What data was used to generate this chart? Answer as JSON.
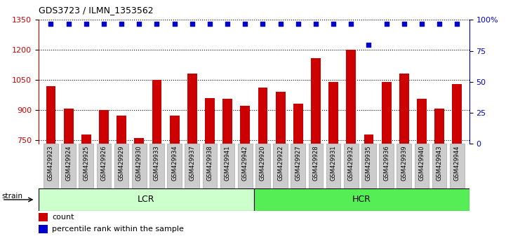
{
  "title": "GDS3723 / ILMN_1353562",
  "categories": [
    "GSM429923",
    "GSM429924",
    "GSM429925",
    "GSM429926",
    "GSM429929",
    "GSM429930",
    "GSM429933",
    "GSM429934",
    "GSM429937",
    "GSM429938",
    "GSM429941",
    "GSM429942",
    "GSM429920",
    "GSM429922",
    "GSM429927",
    "GSM429928",
    "GSM429931",
    "GSM429932",
    "GSM429935",
    "GSM429936",
    "GSM429939",
    "GSM429940",
    "GSM429943",
    "GSM429944"
  ],
  "bar_values": [
    1020,
    905,
    775,
    900,
    870,
    760,
    1050,
    870,
    1080,
    960,
    955,
    920,
    1010,
    990,
    930,
    1160,
    1040,
    1200,
    775,
    1040,
    1080,
    955,
    905,
    1030
  ],
  "percentile_values": [
    97,
    97,
    97,
    97,
    97,
    97,
    97,
    97,
    97,
    97,
    97,
    97,
    97,
    97,
    97,
    97,
    97,
    97,
    80,
    97,
    97,
    97,
    97,
    97
  ],
  "bar_color": "#cc0000",
  "percentile_color": "#0000cc",
  "ylim_left": [
    730,
    1350
  ],
  "ylim_right": [
    0,
    100
  ],
  "yticks_left": [
    750,
    900,
    1050,
    1200,
    1350
  ],
  "yticks_right": [
    0,
    25,
    50,
    75,
    100
  ],
  "ytick_labels_right": [
    "0",
    "25",
    "50",
    "75",
    "100%"
  ],
  "group_labels": [
    "LCR",
    "HCR"
  ],
  "group_sizes": [
    12,
    12
  ],
  "group_colors_lcr": "#ccffcc",
  "group_colors_hcr": "#55ee55",
  "strain_label": "strain",
  "legend_count_label": "count",
  "legend_percentile_label": "percentile rank within the sample",
  "bar_width": 0.55,
  "bg_color": "#ffffff",
  "tick_bg_color": "#cccccc"
}
